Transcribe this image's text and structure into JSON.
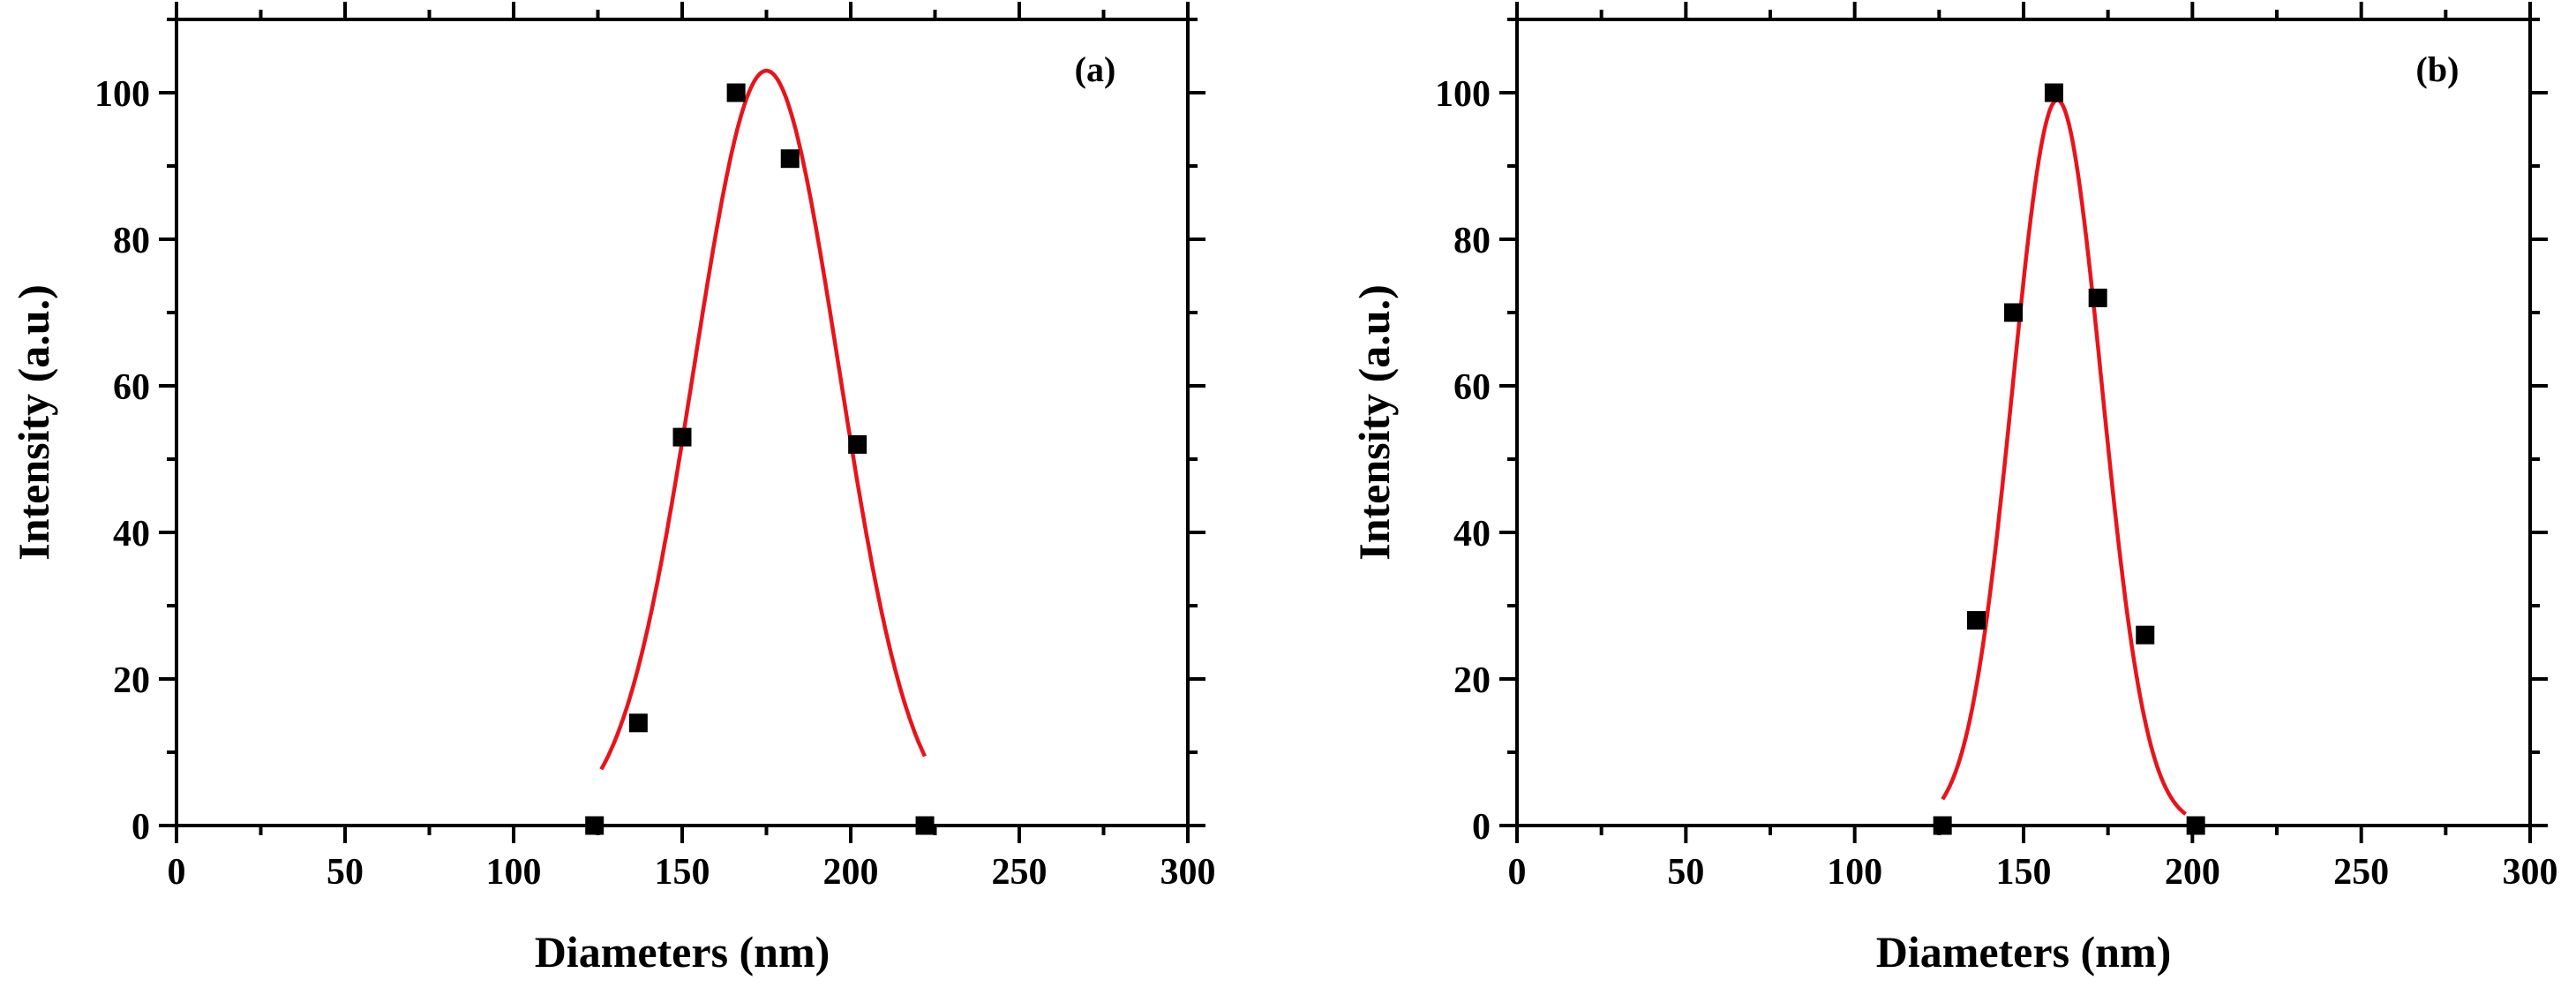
{
  "colors": {
    "marker": "#000000",
    "fit": "#e8141b",
    "axis": "#000000"
  },
  "chart_data": [
    {
      "type": "scatter",
      "panel_label": "(a)",
      "xlabel": "Diameters (nm)",
      "ylabel": "Intensity (a.u.)",
      "xlim": [
        0,
        300
      ],
      "ylim": [
        0,
        110
      ],
      "xticks": [
        0,
        50,
        100,
        150,
        200,
        250,
        300
      ],
      "yticks": [
        0,
        20,
        40,
        60,
        80,
        100
      ],
      "grid": false,
      "points": {
        "x": [
          124,
          137,
          150,
          166,
          182,
          202,
          222
        ],
        "y": [
          0,
          14,
          53,
          100,
          91,
          52,
          0
        ]
      },
      "fit": {
        "type": "gaussian",
        "center": 175,
        "amplitude": 103,
        "sigma": 21.5,
        "x_range": [
          126,
          222
        ]
      }
    },
    {
      "type": "scatter",
      "panel_label": "(b)",
      "xlabel": "Diameters (nm)",
      "ylabel": "Intensity (a.u.)",
      "xlim": [
        0,
        300
      ],
      "ylim": [
        0,
        110
      ],
      "xticks": [
        0,
        50,
        100,
        150,
        200,
        250,
        300
      ],
      "yticks": [
        0,
        20,
        40,
        60,
        80,
        100
      ],
      "grid": false,
      "points": {
        "x": [
          126,
          136,
          147,
          159,
          172,
          186,
          201
        ],
        "y": [
          0,
          28,
          70,
          100,
          72,
          26,
          0
        ]
      },
      "fit": {
        "type": "gaussian",
        "center": 160,
        "amplitude": 99,
        "sigma": 13.2,
        "x_range": [
          126,
          198
        ]
      }
    }
  ]
}
